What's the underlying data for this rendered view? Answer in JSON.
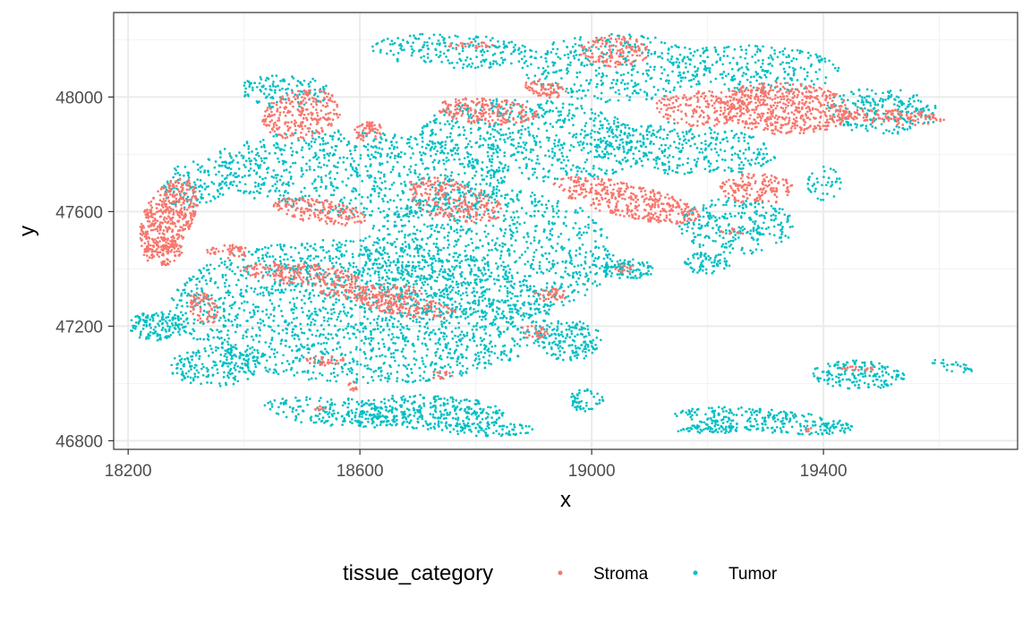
{
  "chart_data": {
    "type": "scatter",
    "xlabel": "x",
    "ylabel": "y",
    "xlim": [
      18175,
      19735
    ],
    "ylim": [
      46770,
      48295
    ],
    "x_ticks": [
      18200,
      18600,
      19000,
      19400
    ],
    "y_ticks": [
      46800,
      47200,
      47600,
      48000
    ],
    "x_tick_labels": [
      "18200",
      "18600",
      "19000",
      "19400"
    ],
    "y_tick_labels": [
      "46800",
      "47200",
      "47600",
      "48000"
    ],
    "grid": true,
    "legend": {
      "title": "tissue_category",
      "position": "bottom",
      "entries": [
        "Stroma",
        "Tumor"
      ]
    },
    "series": [
      {
        "name": "Stroma",
        "color": "#F8766D"
      },
      {
        "name": "Tumor",
        "color": "#00BFC4"
      }
    ],
    "regions": {
      "Stroma": [
        {
          "cx": 18270,
          "cy": 47580,
          "rx": 45,
          "ry": 140,
          "n": 420,
          "rot": -10
        },
        {
          "cx": 18260,
          "cy": 47460,
          "rx": 35,
          "ry": 50,
          "n": 90,
          "rot": 0
        },
        {
          "cx": 18330,
          "cy": 47260,
          "rx": 25,
          "ry": 60,
          "n": 70,
          "rot": 10
        },
        {
          "cx": 18375,
          "cy": 47460,
          "rx": 40,
          "ry": 25,
          "n": 45,
          "rot": 0
        },
        {
          "cx": 18500,
          "cy": 47940,
          "rx": 65,
          "ry": 90,
          "n": 260,
          "rot": -20
        },
        {
          "cx": 18615,
          "cy": 47880,
          "rx": 28,
          "ry": 35,
          "n": 55,
          "rot": 0
        },
        {
          "cx": 18530,
          "cy": 47600,
          "rx": 85,
          "ry": 40,
          "n": 170,
          "rot": -22
        },
        {
          "cx": 18500,
          "cy": 47380,
          "rx": 110,
          "ry": 38,
          "n": 200,
          "rot": -10
        },
        {
          "cx": 18680,
          "cy": 47270,
          "rx": 90,
          "ry": 35,
          "n": 170,
          "rot": -18
        },
        {
          "cx": 18620,
          "cy": 47320,
          "rx": 90,
          "ry": 28,
          "n": 110,
          "rot": 0
        },
        {
          "cx": 18760,
          "cy": 47640,
          "rx": 100,
          "ry": 60,
          "n": 230,
          "rot": -40
        },
        {
          "cx": 18820,
          "cy": 47950,
          "rx": 90,
          "ry": 45,
          "n": 200,
          "rot": -10
        },
        {
          "cx": 18540,
          "cy": 47080,
          "rx": 35,
          "ry": 18,
          "n": 35,
          "rot": 0
        },
        {
          "cx": 18590,
          "cy": 46990,
          "rx": 12,
          "ry": 18,
          "n": 12,
          "rot": 0
        },
        {
          "cx": 18530,
          "cy": 46910,
          "rx": 12,
          "ry": 10,
          "n": 8,
          "rot": 0
        },
        {
          "cx": 18900,
          "cy": 47180,
          "rx": 25,
          "ry": 25,
          "n": 30,
          "rot": 0
        },
        {
          "cx": 18930,
          "cy": 47310,
          "rx": 30,
          "ry": 22,
          "n": 40,
          "rot": 0
        },
        {
          "cx": 18920,
          "cy": 48030,
          "rx": 40,
          "ry": 30,
          "n": 70,
          "rot": -30
        },
        {
          "cx": 19040,
          "cy": 48160,
          "rx": 60,
          "ry": 55,
          "n": 140,
          "rot": 0
        },
        {
          "cx": 18790,
          "cy": 48180,
          "rx": 40,
          "ry": 12,
          "n": 25,
          "rot": 0
        },
        {
          "cx": 19060,
          "cy": 47640,
          "rx": 140,
          "ry": 55,
          "n": 380,
          "rot": -28
        },
        {
          "cx": 19190,
          "cy": 47960,
          "rx": 80,
          "ry": 65,
          "n": 160,
          "rot": -10
        },
        {
          "cx": 19330,
          "cy": 47960,
          "rx": 120,
          "ry": 90,
          "n": 560,
          "rot": -8
        },
        {
          "cx": 19520,
          "cy": 47930,
          "rx": 90,
          "ry": 28,
          "n": 120,
          "rot": -5
        },
        {
          "cx": 19285,
          "cy": 47680,
          "rx": 65,
          "ry": 55,
          "n": 150,
          "rot": -5
        },
        {
          "cx": 19245,
          "cy": 47530,
          "rx": 22,
          "ry": 14,
          "n": 12,
          "rot": 0
        },
        {
          "cx": 19060,
          "cy": 47400,
          "rx": 20,
          "ry": 15,
          "n": 15,
          "rot": 0
        },
        {
          "cx": 18740,
          "cy": 47030,
          "rx": 20,
          "ry": 15,
          "n": 14,
          "rot": 0
        },
        {
          "cx": 19460,
          "cy": 47050,
          "rx": 30,
          "ry": 10,
          "n": 20,
          "rot": 0
        },
        {
          "cx": 19370,
          "cy": 46840,
          "rx": 10,
          "ry": 8,
          "n": 5,
          "rot": 0
        }
      ],
      "Tumor": [
        {
          "cx": 18600,
          "cy": 47250,
          "rx": 330,
          "ry": 250,
          "n": 1900,
          "rot": -8
        },
        {
          "cx": 18820,
          "cy": 47450,
          "rx": 220,
          "ry": 230,
          "n": 900,
          "rot": -20
        },
        {
          "cx": 18600,
          "cy": 47730,
          "rx": 260,
          "ry": 150,
          "n": 800,
          "rot": -10
        },
        {
          "cx": 18900,
          "cy": 47850,
          "rx": 200,
          "ry": 140,
          "n": 600,
          "rot": -15
        },
        {
          "cx": 18350,
          "cy": 47060,
          "rx": 80,
          "ry": 70,
          "n": 180,
          "rot": 20
        },
        {
          "cx": 18250,
          "cy": 47200,
          "rx": 50,
          "ry": 50,
          "n": 130,
          "rot": 0
        },
        {
          "cx": 18320,
          "cy": 47700,
          "rx": 60,
          "ry": 90,
          "n": 130,
          "rot": -20
        },
        {
          "cx": 18560,
          "cy": 46900,
          "rx": 130,
          "ry": 50,
          "n": 200,
          "rot": -10
        },
        {
          "cx": 18720,
          "cy": 46900,
          "rx": 130,
          "ry": 60,
          "n": 300,
          "rot": -5
        },
        {
          "cx": 18820,
          "cy": 46840,
          "rx": 80,
          "ry": 25,
          "n": 80,
          "rot": 0
        },
        {
          "cx": 18760,
          "cy": 48160,
          "rx": 140,
          "ry": 60,
          "n": 200,
          "rot": -5
        },
        {
          "cx": 19040,
          "cy": 48100,
          "rx": 160,
          "ry": 120,
          "n": 350,
          "rot": 0
        },
        {
          "cx": 19150,
          "cy": 47820,
          "rx": 170,
          "ry": 90,
          "n": 350,
          "rot": -10
        },
        {
          "cx": 19250,
          "cy": 47550,
          "rx": 100,
          "ry": 100,
          "n": 250,
          "rot": -20
        },
        {
          "cx": 19200,
          "cy": 47420,
          "rx": 40,
          "ry": 40,
          "n": 70,
          "rot": 0
        },
        {
          "cx": 19280,
          "cy": 48100,
          "rx": 150,
          "ry": 80,
          "n": 250,
          "rot": -5
        },
        {
          "cx": 19500,
          "cy": 47950,
          "rx": 100,
          "ry": 80,
          "n": 220,
          "rot": -10
        },
        {
          "cx": 19060,
          "cy": 47400,
          "rx": 50,
          "ry": 35,
          "n": 90,
          "rot": 0
        },
        {
          "cx": 18960,
          "cy": 47150,
          "rx": 60,
          "ry": 70,
          "n": 160,
          "rot": 0
        },
        {
          "cx": 18990,
          "cy": 46940,
          "rx": 30,
          "ry": 40,
          "n": 50,
          "rot": 0
        },
        {
          "cx": 19300,
          "cy": 46870,
          "rx": 160,
          "ry": 40,
          "n": 260,
          "rot": -10
        },
        {
          "cx": 19460,
          "cy": 47030,
          "rx": 80,
          "ry": 50,
          "n": 160,
          "rot": -5
        },
        {
          "cx": 19200,
          "cy": 46840,
          "rx": 60,
          "ry": 15,
          "n": 60,
          "rot": 0
        },
        {
          "cx": 19620,
          "cy": 47060,
          "rx": 40,
          "ry": 18,
          "n": 25,
          "rot": -25
        },
        {
          "cx": 18470,
          "cy": 48020,
          "rx": 80,
          "ry": 60,
          "n": 120,
          "rot": 0
        },
        {
          "cx": 19400,
          "cy": 47700,
          "rx": 30,
          "ry": 60,
          "n": 40,
          "rot": 0
        }
      ]
    }
  }
}
